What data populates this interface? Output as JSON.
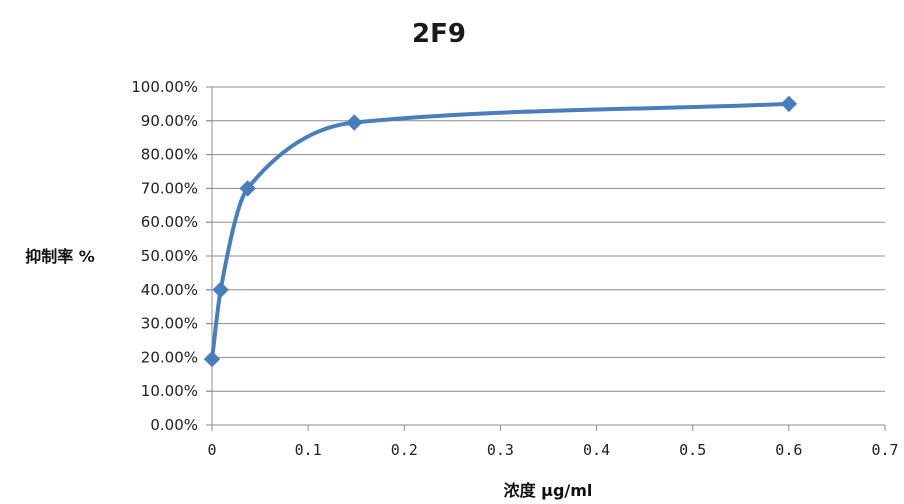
{
  "chart_data": {
    "type": "line",
    "title": "2F9",
    "xlabel": "浓度 μg/ml",
    "ylabel": "抑制率 %",
    "xlim": [
      0,
      0.7
    ],
    "ylim": [
      0,
      1.0
    ],
    "x_ticks": [
      "0",
      "0.1",
      "0.2",
      "0.3",
      "0.4",
      "0.5",
      "0.6",
      "0.7"
    ],
    "y_ticks": [
      "0.00%",
      "10.00%",
      "20.00%",
      "30.00%",
      "40.00%",
      "50.00%",
      "60.00%",
      "70.00%",
      "80.00%",
      "90.00%",
      "100.00%"
    ],
    "grid": true,
    "series": [
      {
        "color": "#4a7ebb",
        "marker": "diamond",
        "smooth": true,
        "x": [
          0.0,
          0.009,
          0.037,
          0.148,
          0.6
        ],
        "y": [
          0.195,
          0.4,
          0.7,
          0.895,
          0.95
        ]
      }
    ]
  }
}
